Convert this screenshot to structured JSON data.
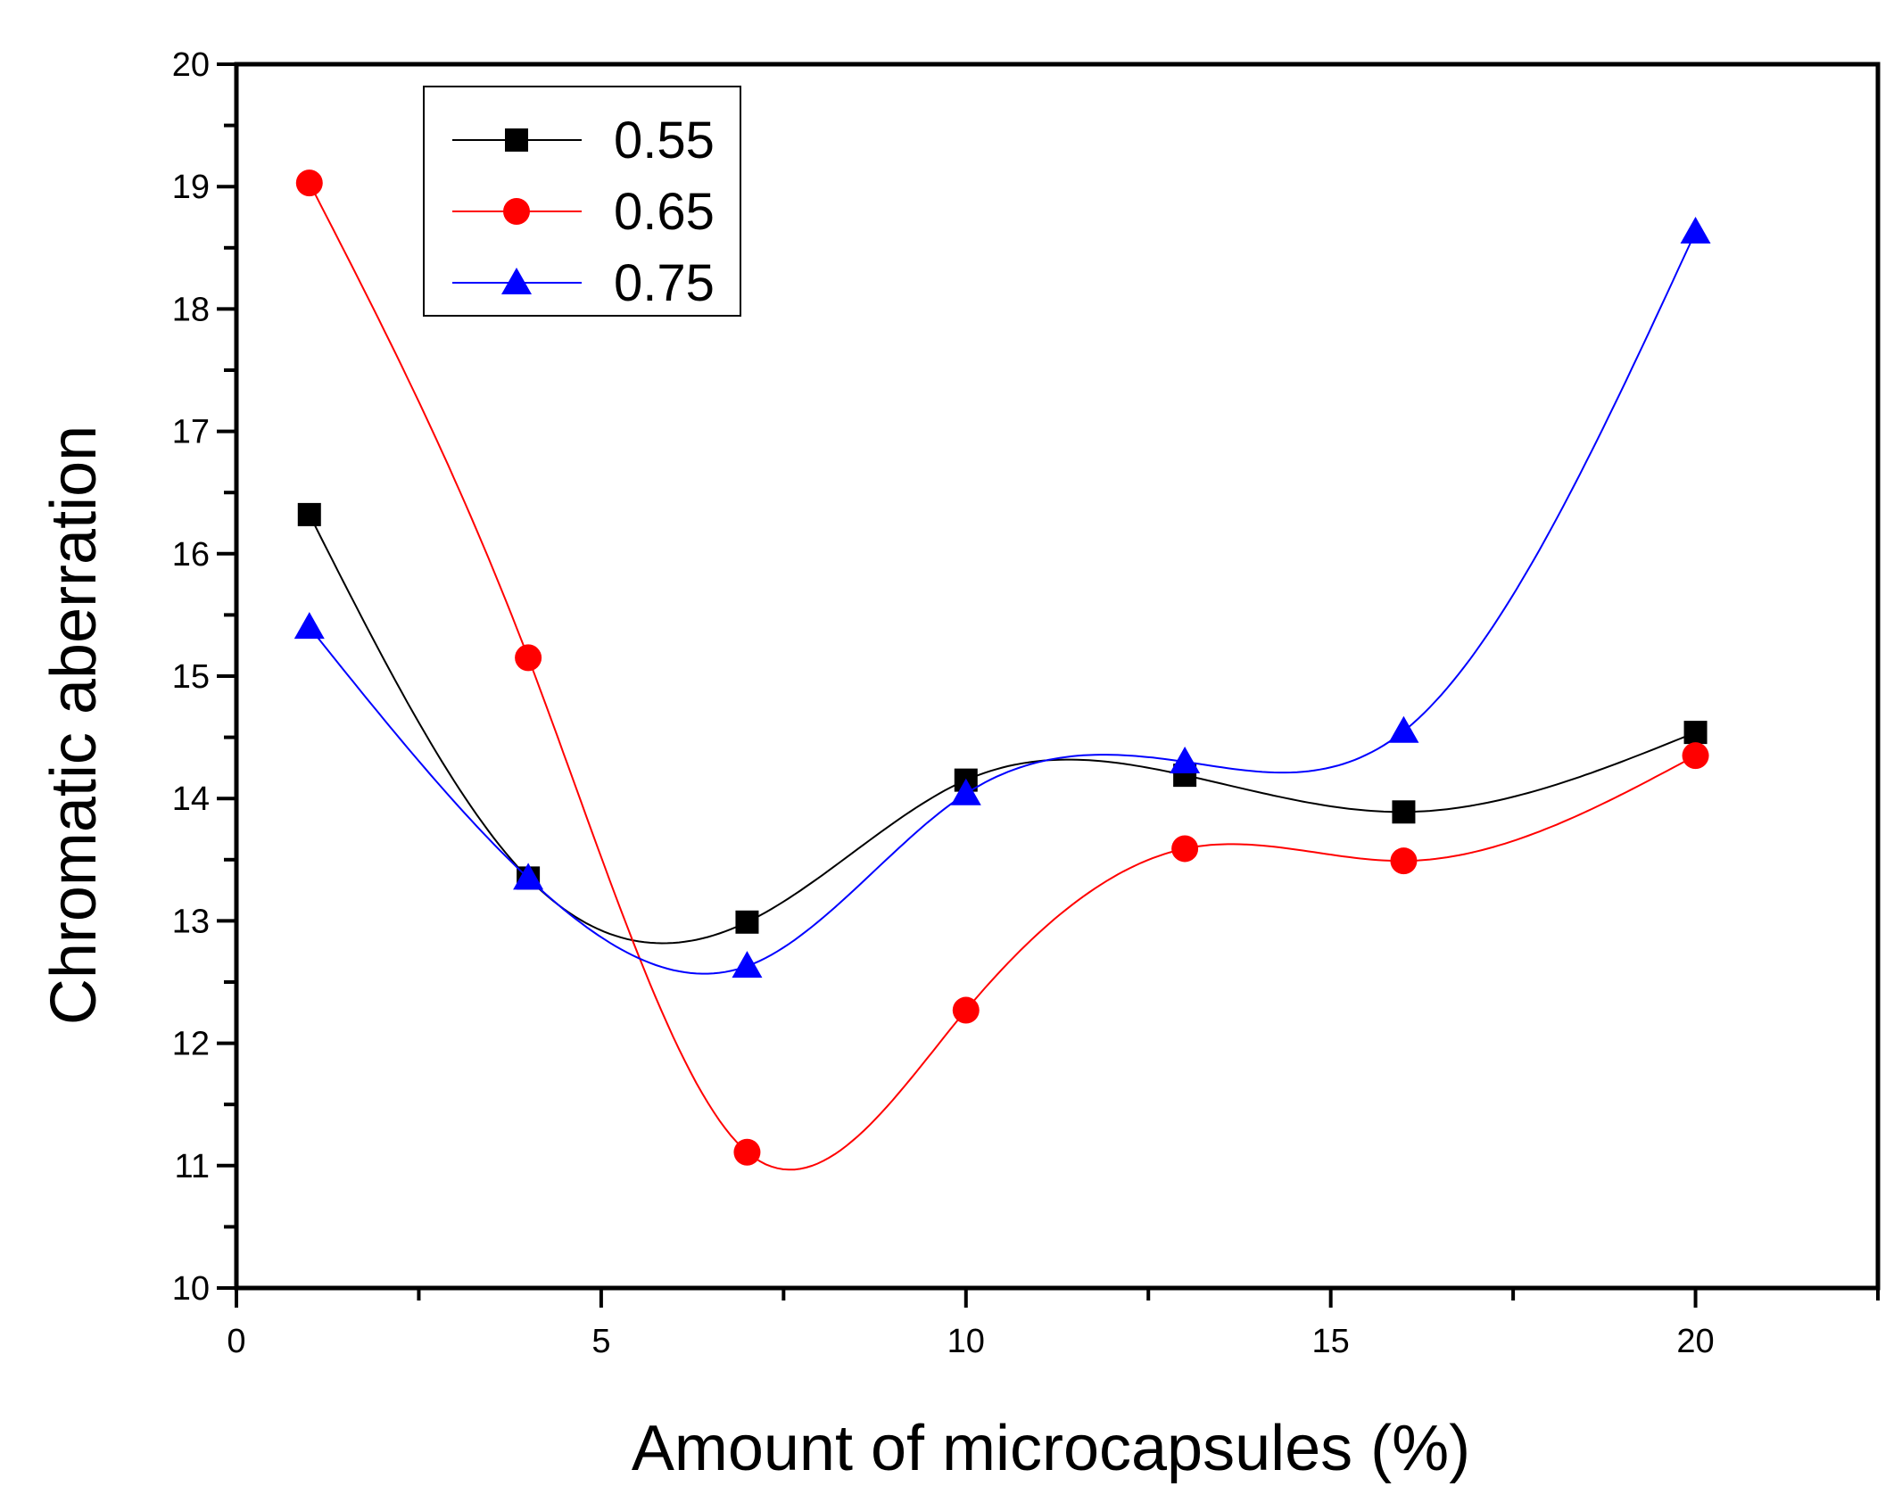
{
  "chart_data": {
    "type": "line",
    "title": "",
    "xlabel": "Amount of microcapsules (%)",
    "ylabel": "Chromatic aberration",
    "xlim": [
      0,
      22.5
    ],
    "ylim": [
      10,
      20
    ],
    "xticks": [
      0,
      5,
      10,
      15,
      20
    ],
    "xtick_labels": [
      "0",
      "5",
      "10",
      "15",
      "20"
    ],
    "yticks": [
      10,
      11,
      12,
      13,
      14,
      15,
      16,
      17,
      18,
      19,
      20
    ],
    "ytick_labels": [
      "10",
      "11",
      "12",
      "13",
      "14",
      "15",
      "16",
      "17",
      "18",
      "19",
      "20"
    ],
    "x": [
      1,
      4,
      7,
      10,
      13,
      16,
      20
    ],
    "legend_position": "top-left",
    "series": [
      {
        "name": "0.55",
        "color": "#000000",
        "marker": "square",
        "values": [
          16.32,
          13.35,
          12.99,
          14.15,
          14.19,
          13.89,
          14.54
        ]
      },
      {
        "name": "0.65",
        "color": "#ff0000",
        "marker": "circle",
        "values": [
          19.03,
          15.15,
          11.11,
          12.27,
          13.59,
          13.49,
          14.35
        ]
      },
      {
        "name": "0.75",
        "color": "#0000ff",
        "marker": "triangle",
        "values": [
          15.4,
          13.35,
          12.63,
          14.04,
          14.3,
          14.55,
          18.63
        ]
      }
    ]
  }
}
